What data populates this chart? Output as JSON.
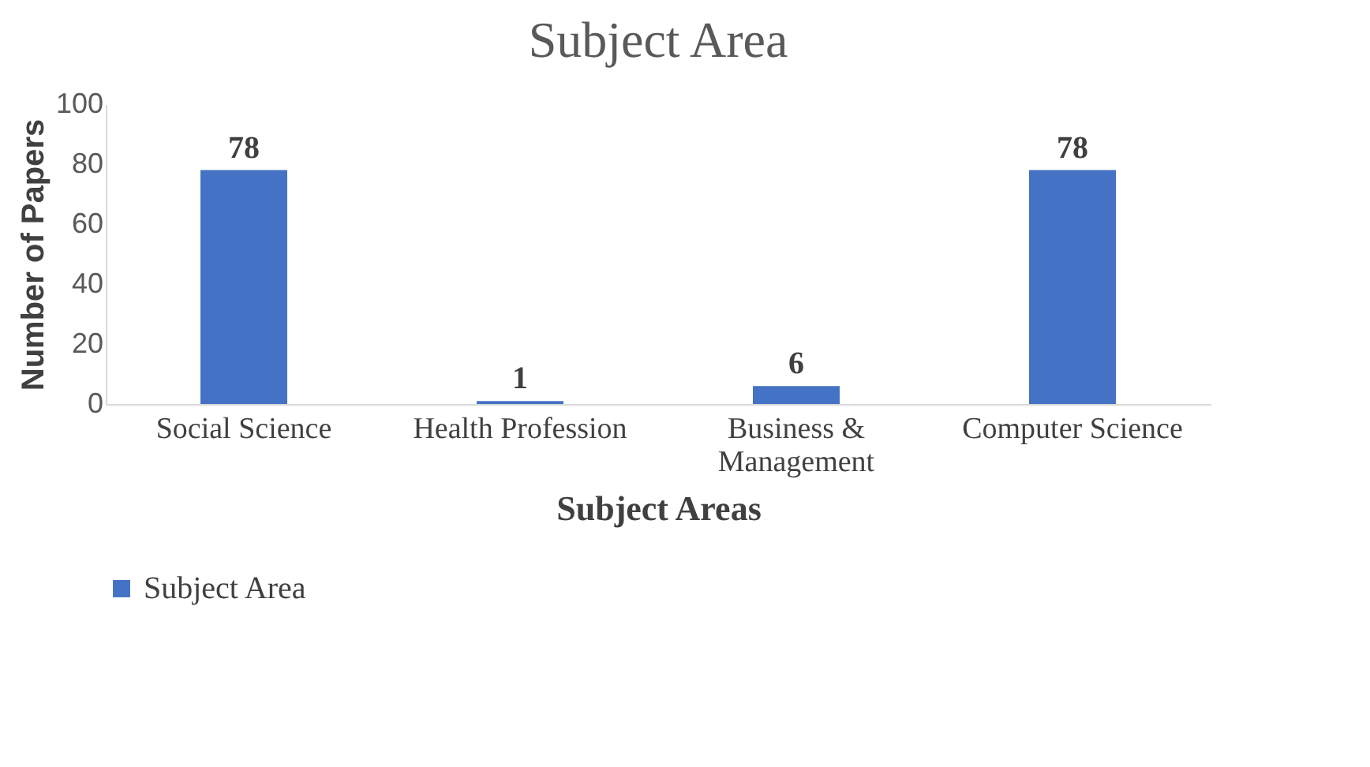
{
  "chart_data": {
    "type": "bar",
    "title": "Subject Area",
    "xlabel": "Subject Areas",
    "ylabel": "Number of Papers",
    "categories": [
      "Social Science",
      "Health Profession",
      "Business & Management",
      "Computer Science"
    ],
    "series": [
      {
        "name": "Subject Area",
        "color": "#4472c4",
        "values": [
          78,
          1,
          6,
          78
        ]
      }
    ],
    "ylim": [
      0,
      100
    ],
    "yticks": [
      0,
      20,
      40,
      60,
      80,
      100
    ],
    "grid": false,
    "legend": "bottom",
    "data_labels": true
  }
}
